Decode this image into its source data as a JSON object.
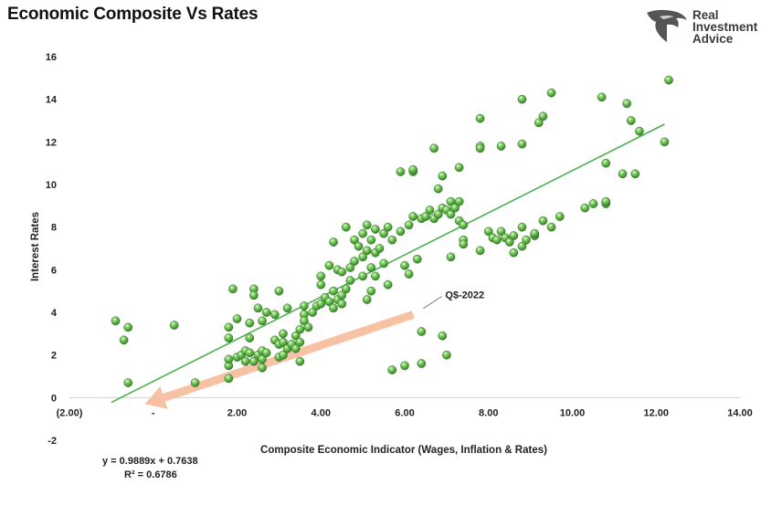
{
  "header": {
    "title": "Economic Composite Vs Rates",
    "logo_lines": [
      "Real",
      "Investment",
      "Advice"
    ]
  },
  "colors": {
    "point": "#4caf3f",
    "trendline": "#4caf50",
    "arrow": "#f7c1a3"
  },
  "regression": {
    "equation": "y = 0.9889x + 0.7638",
    "r2": "R² = 0.6786"
  },
  "chart_data": {
    "type": "scatter",
    "title": "Economic Composite Vs Rates",
    "xlabel": "Composite Economic Indicator (Wages, Inflation & Rates)",
    "ylabel": "Interest Rates",
    "xlim": [
      -2,
      14
    ],
    "ylim": [
      -2,
      16
    ],
    "x_ticks": [
      -2,
      0,
      2,
      4,
      6,
      8,
      10,
      12,
      14
    ],
    "x_tick_labels": [
      "(2.00)",
      "-",
      "2.00",
      "4.00",
      "6.00",
      "8.00",
      "10.00",
      "12.00",
      "14.00"
    ],
    "y_ticks": [
      -2,
      0,
      2,
      4,
      6,
      8,
      10,
      12,
      14,
      16
    ],
    "y_tick_labels": [
      "-2",
      "0",
      "2",
      "4",
      "6",
      "8",
      "10",
      "12",
      "14",
      "16"
    ],
    "grid": "none",
    "trendline": {
      "slope": 0.9889,
      "intercept": 0.7638,
      "x_range": [
        -1.0,
        12.2
      ]
    },
    "annotation": {
      "label": "Q$-2022",
      "x": 6.4,
      "y": 4.1
    },
    "arrow": {
      "from": [
        6.2,
        3.9
      ],
      "to": [
        -0.2,
        -0.3
      ]
    },
    "points": [
      [
        -0.9,
        3.6
      ],
      [
        -0.7,
        2.7
      ],
      [
        -0.6,
        3.3
      ],
      [
        -0.6,
        0.7
      ],
      [
        0.5,
        3.4
      ],
      [
        1.0,
        0.7
      ],
      [
        1.8,
        0.9
      ],
      [
        1.8,
        1.5
      ],
      [
        1.8,
        1.8
      ],
      [
        1.8,
        2.8
      ],
      [
        1.8,
        3.3
      ],
      [
        1.9,
        5.1
      ],
      [
        2.0,
        1.9
      ],
      [
        2.0,
        3.7
      ],
      [
        2.1,
        2.0
      ],
      [
        2.2,
        1.7
      ],
      [
        2.2,
        2.2
      ],
      [
        2.3,
        2.1
      ],
      [
        2.3,
        3.5
      ],
      [
        2.3,
        2.8
      ],
      [
        2.4,
        5.1
      ],
      [
        2.4,
        1.7
      ],
      [
        2.4,
        4.8
      ],
      [
        2.5,
        4.2
      ],
      [
        2.5,
        2.0
      ],
      [
        2.6,
        2.2
      ],
      [
        2.6,
        1.8
      ],
      [
        2.6,
        3.6
      ],
      [
        2.6,
        1.4
      ],
      [
        2.7,
        4.0
      ],
      [
        2.7,
        2.1
      ],
      [
        2.9,
        3.9
      ],
      [
        2.9,
        2.7
      ],
      [
        3.0,
        2.5
      ],
      [
        3.0,
        5.0
      ],
      [
        3.0,
        1.9
      ],
      [
        3.1,
        2.6
      ],
      [
        3.1,
        2.0
      ],
      [
        3.1,
        3.0
      ],
      [
        3.2,
        2.3
      ],
      [
        3.2,
        4.2
      ],
      [
        3.3,
        2.5
      ],
      [
        3.4,
        2.3
      ],
      [
        3.4,
        2.9
      ],
      [
        3.5,
        3.2
      ],
      [
        3.5,
        2.6
      ],
      [
        3.5,
        1.7
      ],
      [
        3.6,
        3.9
      ],
      [
        3.6,
        4.3
      ],
      [
        3.6,
        3.6
      ],
      [
        3.7,
        3.3
      ],
      [
        3.8,
        4.0
      ],
      [
        3.9,
        4.3
      ],
      [
        4.0,
        5.7
      ],
      [
        4.0,
        4.4
      ],
      [
        4.0,
        5.3
      ],
      [
        4.1,
        4.7
      ],
      [
        4.2,
        4.5
      ],
      [
        4.2,
        6.2
      ],
      [
        4.3,
        4.2
      ],
      [
        4.3,
        5.0
      ],
      [
        4.3,
        7.3
      ],
      [
        4.4,
        4.6
      ],
      [
        4.4,
        6.0
      ],
      [
        4.5,
        4.8
      ],
      [
        4.5,
        5.9
      ],
      [
        4.5,
        4.4
      ],
      [
        4.6,
        8.0
      ],
      [
        4.6,
        5.1
      ],
      [
        4.7,
        6.1
      ],
      [
        4.7,
        5.5
      ],
      [
        4.8,
        7.4
      ],
      [
        4.8,
        6.4
      ],
      [
        4.9,
        7.1
      ],
      [
        5.0,
        5.7
      ],
      [
        5.0,
        6.6
      ],
      [
        5.0,
        7.7
      ],
      [
        5.1,
        8.1
      ],
      [
        5.1,
        6.9
      ],
      [
        5.1,
        4.6
      ],
      [
        5.2,
        7.4
      ],
      [
        5.2,
        6.1
      ],
      [
        5.2,
        5.0
      ],
      [
        5.3,
        7.9
      ],
      [
        5.3,
        6.8
      ],
      [
        5.3,
        5.7
      ],
      [
        5.4,
        7.0
      ],
      [
        5.5,
        6.3
      ],
      [
        5.5,
        7.7
      ],
      [
        5.6,
        8.0
      ],
      [
        5.6,
        5.3
      ],
      [
        5.7,
        7.4
      ],
      [
        5.7,
        1.3
      ],
      [
        5.9,
        7.8
      ],
      [
        5.9,
        10.6
      ],
      [
        6.0,
        6.2
      ],
      [
        6.0,
        1.5
      ],
      [
        6.1,
        8.1
      ],
      [
        6.1,
        5.8
      ],
      [
        6.2,
        10.6
      ],
      [
        6.2,
        8.5
      ],
      [
        6.2,
        10.7
      ],
      [
        6.3,
        6.5
      ],
      [
        6.4,
        1.6
      ],
      [
        6.4,
        8.4
      ],
      [
        6.4,
        3.1
      ],
      [
        6.5,
        8.5
      ],
      [
        6.6,
        8.8
      ],
      [
        6.7,
        8.4
      ],
      [
        6.7,
        11.7
      ],
      [
        6.8,
        9.8
      ],
      [
        6.8,
        8.6
      ],
      [
        6.9,
        2.9
      ],
      [
        6.9,
        10.4
      ],
      [
        6.9,
        8.9
      ],
      [
        7.0,
        2.0
      ],
      [
        7.0,
        8.8
      ],
      [
        7.1,
        9.2
      ],
      [
        7.1,
        8.6
      ],
      [
        7.1,
        6.6
      ],
      [
        7.2,
        8.9
      ],
      [
        7.3,
        9.2
      ],
      [
        7.3,
        8.3
      ],
      [
        7.3,
        10.8
      ],
      [
        7.4,
        7.4
      ],
      [
        7.4,
        8.1
      ],
      [
        7.4,
        7.2
      ],
      [
        7.8,
        13.1
      ],
      [
        7.8,
        11.8
      ],
      [
        7.8,
        11.7
      ],
      [
        7.8,
        6.9
      ],
      [
        8.0,
        7.8
      ],
      [
        8.1,
        7.5
      ],
      [
        8.2,
        7.4
      ],
      [
        8.3,
        11.8
      ],
      [
        8.3,
        7.8
      ],
      [
        8.4,
        7.5
      ],
      [
        8.5,
        7.3
      ],
      [
        8.6,
        6.8
      ],
      [
        8.6,
        7.6
      ],
      [
        8.8,
        14.0
      ],
      [
        8.8,
        11.9
      ],
      [
        8.8,
        8.0
      ],
      [
        8.8,
        7.1
      ],
      [
        8.9,
        7.4
      ],
      [
        9.1,
        7.6
      ],
      [
        9.1,
        7.7
      ],
      [
        9.2,
        12.9
      ],
      [
        9.3,
        13.2
      ],
      [
        9.3,
        8.3
      ],
      [
        9.5,
        14.3
      ],
      [
        9.5,
        8.0
      ],
      [
        9.7,
        8.5
      ],
      [
        10.3,
        8.9
      ],
      [
        10.5,
        9.1
      ],
      [
        10.7,
        14.1
      ],
      [
        10.8,
        11.0
      ],
      [
        10.8,
        9.1
      ],
      [
        10.8,
        9.2
      ],
      [
        11.2,
        10.5
      ],
      [
        11.3,
        13.8
      ],
      [
        11.4,
        13.0
      ],
      [
        11.5,
        10.5
      ],
      [
        11.6,
        12.5
      ],
      [
        12.2,
        12.0
      ],
      [
        12.3,
        14.9
      ]
    ]
  }
}
